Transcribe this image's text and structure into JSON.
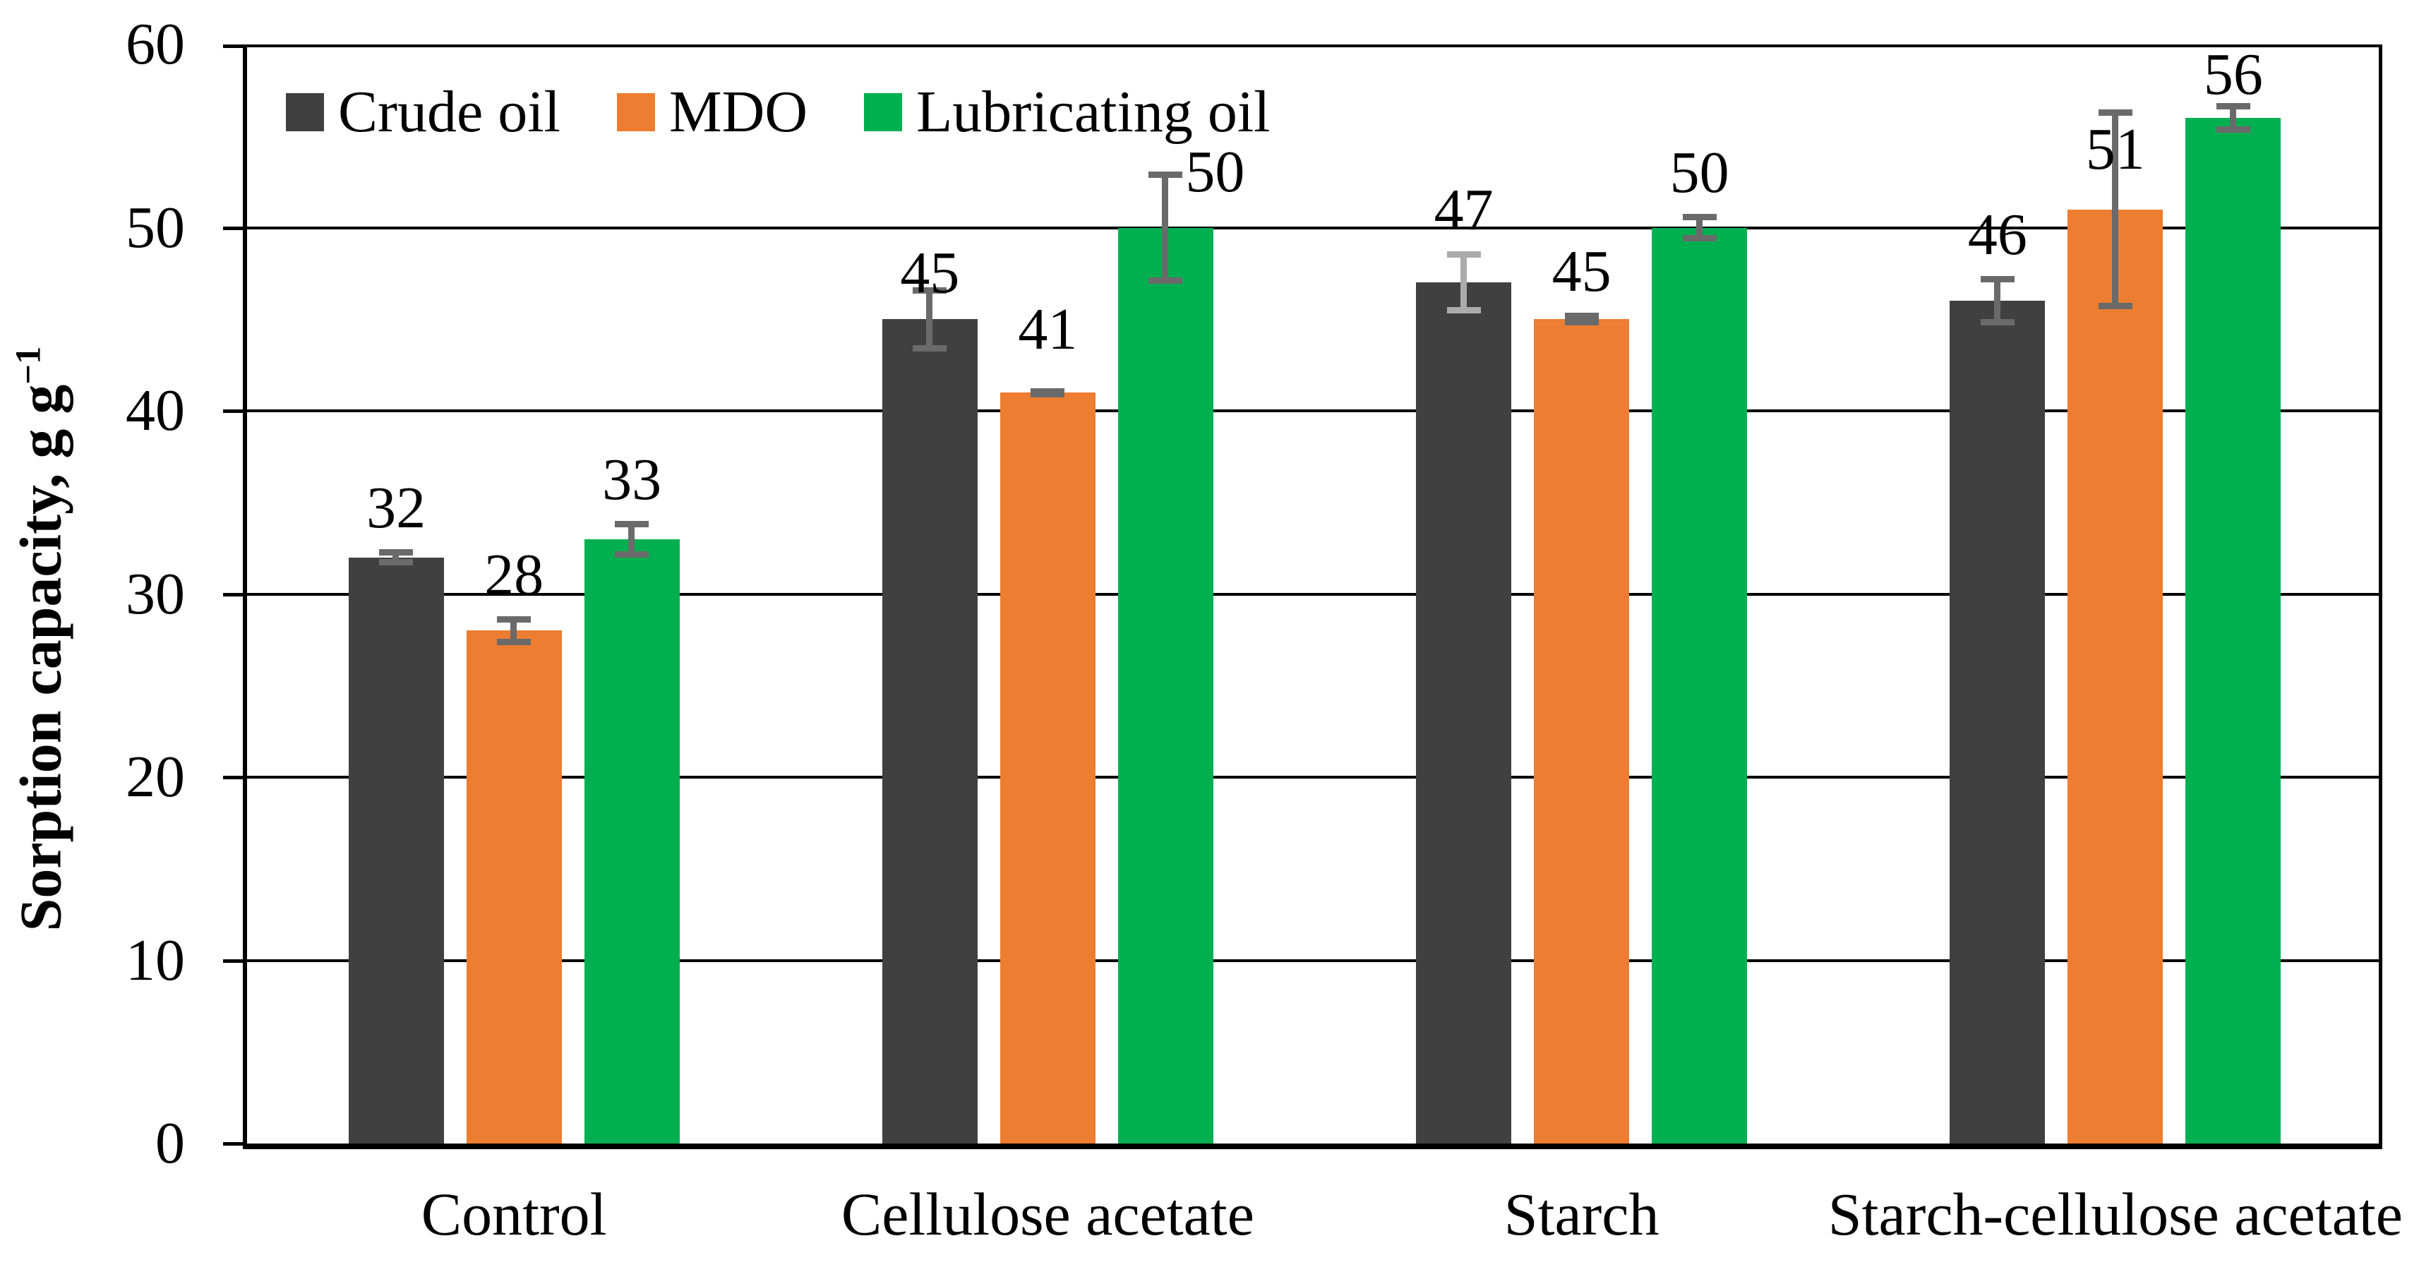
{
  "chart_data": {
    "type": "bar",
    "title": "",
    "xlabel": "",
    "ylabel": "Sorption capacity, g g⁻¹",
    "ylabel_parts": {
      "main": "Sorption capacity, g g",
      "sup": "−1"
    },
    "ylim": [
      0,
      60
    ],
    "yticks": [
      0,
      10,
      20,
      30,
      40,
      50,
      60
    ],
    "grid": true,
    "legend_position": "top-left-inside",
    "categories": [
      "Control",
      "Cellulose acetate",
      "Starch",
      "Starch-cellulose acetate"
    ],
    "series": [
      {
        "name": "Crude oil",
        "color": "#404040",
        "values": [
          32,
          45,
          47,
          46
        ],
        "errors": [
          0.45,
          1.75,
          1.7,
          1.35
        ],
        "error_colors": [
          "#6A6A6A",
          "#6A6A6A",
          "#ABABAB",
          "#6A6A6A"
        ],
        "label_dx": [
          0,
          0,
          0,
          0
        ],
        "label_dy": [
          0,
          38,
          0,
          0
        ]
      },
      {
        "name": "MDO",
        "color": "#ED7D31",
        "values": [
          28,
          41,
          45,
          51
        ],
        "errors": [
          0.8,
          0.25,
          0.35,
          5.45
        ],
        "error_colors": [
          "#6A6A6A",
          "#6A6A6A",
          "#6A6A6A",
          "#6A6A6A"
        ],
        "label_dx": [
          0,
          0,
          0,
          0
        ],
        "label_dy": [
          0,
          -25,
          0,
          115
        ]
      },
      {
        "name": "Lubricating oil",
        "color": "#00B050",
        "values": [
          33,
          50,
          50,
          56
        ],
        "errors": [
          1.0,
          3.05,
          0.75,
          0.8
        ],
        "error_colors": [
          "#6A6A6A",
          "#6A6A6A",
          "#6A6A6A",
          "#6A6A6A"
        ],
        "label_dx": [
          0,
          70,
          0,
          0
        ],
        "label_dy": [
          0,
          59,
          0,
          18
        ]
      }
    ],
    "axis_color": "#000000",
    "gridline_color": "#000000",
    "background_color": "#FFFFFF"
  }
}
